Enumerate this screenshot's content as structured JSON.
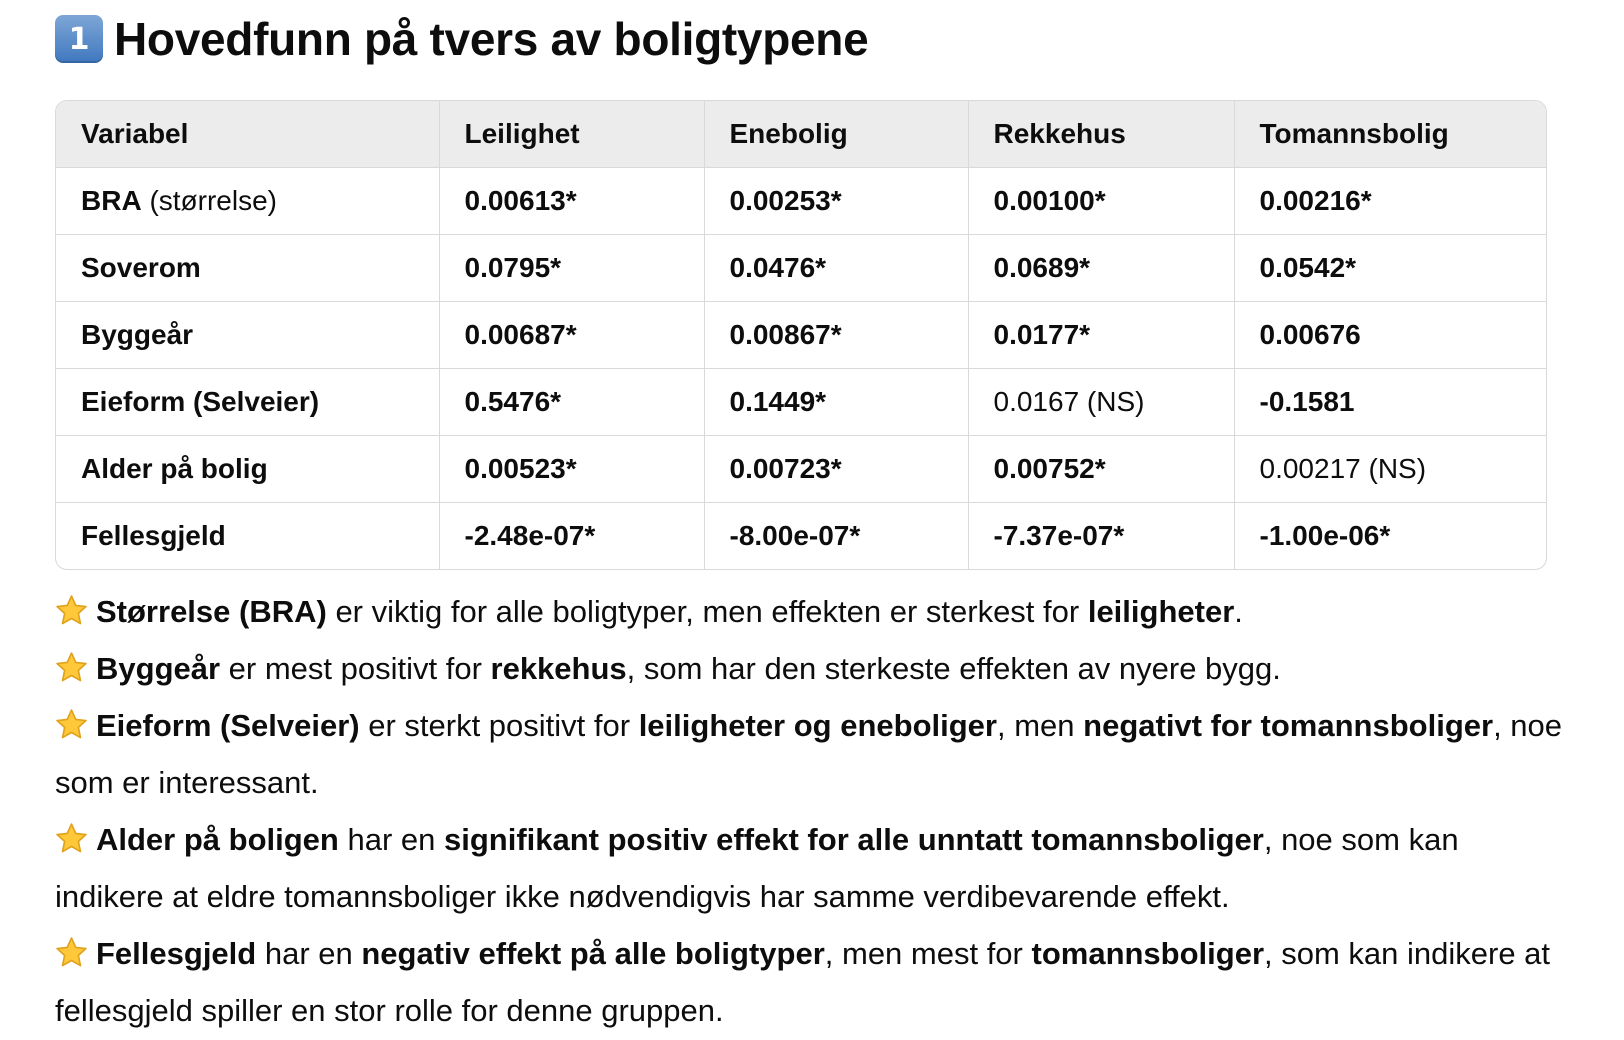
{
  "heading": {
    "badge": "1",
    "title": "Hovedfunn på tvers av boligtypene"
  },
  "table": {
    "headers": [
      "Variabel",
      "Leilighet",
      "Enebolig",
      "Rekkehus",
      "Tomannsbolig"
    ],
    "rows": [
      {
        "name": "BRA",
        "name_suffix": " (størrelse)",
        "cells": [
          "0.00613*",
          "0.00253*",
          "0.00100*",
          "0.00216*"
        ]
      },
      {
        "name": "Soverom",
        "cells": [
          "0.0795*",
          "0.0476*",
          "0.0689*",
          "0.0542*"
        ]
      },
      {
        "name": "Byggeår",
        "cells": [
          "0.00687*",
          "0.00867*",
          "0.0177*",
          "0.00676"
        ]
      },
      {
        "name": "Eieform (Selveier)",
        "cells": [
          "0.5476*",
          "0.1449*",
          "0.0167 (NS)",
          "-0.1581"
        ]
      },
      {
        "name": "Alder på bolig",
        "cells": [
          "0.00523*",
          "0.00723*",
          "0.00752*",
          "0.00217 (NS)"
        ]
      },
      {
        "name": "Fellesgjeld",
        "cells": [
          "-2.48e-07*",
          "-8.00e-07*",
          "-7.37e-07*",
          "-1.00e-06*"
        ]
      }
    ]
  },
  "findings": {
    "icon": "star-icon",
    "items": [
      {
        "b1": "Størrelse (BRA)",
        "t1": " er viktig for alle boligtyper, men effekten er sterkest for ",
        "b2": "leiligheter",
        "t2": "."
      },
      {
        "b1": "Byggeår",
        "t1": " er mest positivt for ",
        "b2": "rekkehus",
        "t2": ", som har den sterkeste effekten av nyere bygg."
      },
      {
        "b1": "Eieform (Selveier)",
        "t1": " er sterkt positivt for ",
        "b2": "leiligheter og eneboliger",
        "t2": ", men ",
        "b3": "negativt for tomannsboliger",
        "t3": ", noe som er interessant."
      },
      {
        "b1": "Alder på boligen",
        "t1": " har en ",
        "b2": "signifikant positiv effekt for alle unntatt tomannsboliger",
        "t2": ", noe som kan indikere at eldre tomannsboliger ikke nødvendigvis har samme verdibevarende effekt."
      },
      {
        "b1": "Fellesgjeld",
        "t1": " har en ",
        "b2": "negativ effekt på alle boligtyper",
        "t2": ", men mest for ",
        "b3": "tomannsboliger",
        "t3": ", som kan indikere at fellesgjeld spiller en stor rolle for denne gruppen."
      }
    ]
  }
}
